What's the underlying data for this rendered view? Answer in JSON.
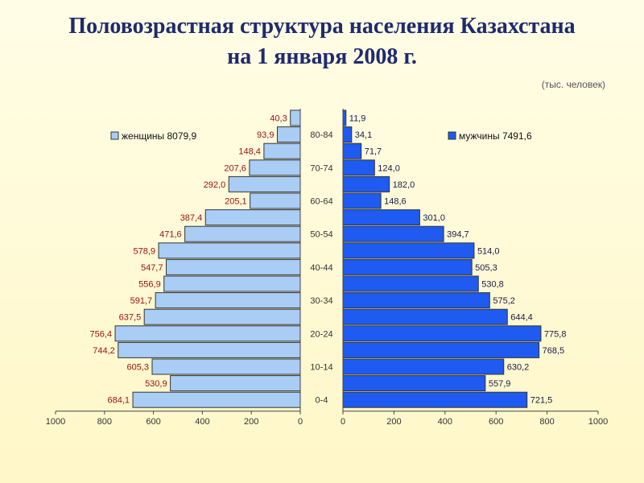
{
  "title": {
    "line1": "Половозрастная структура населения Казахстана",
    "line2": "на 1 января 2008 г."
  },
  "units": "(тыс. человек)",
  "colors": {
    "female": "#a9cdf5",
    "male": "#1f5bf0",
    "female_labels": "#a01010",
    "title": "#1f2a6e"
  },
  "chart_data": {
    "type": "bar",
    "orientation": "horizontal population pyramid",
    "age_labels_shown": [
      "80-84",
      "70-74",
      "60-64",
      "50-54",
      "40-44",
      "30-34",
      "20-24",
      "10-14",
      "0-4"
    ],
    "series": [
      {
        "name": "женщины 8079,9",
        "side": "left",
        "values": [
          40.3,
          93.9,
          148.4,
          207.6,
          292.0,
          205.1,
          387.4,
          471.6,
          578.9,
          547.7,
          556.9,
          591.7,
          637.5,
          756.4,
          744.2,
          605.3,
          530.9,
          684.1
        ],
        "labels": [
          "40,3",
          "93,9",
          "148,4",
          "207,6",
          "292,0",
          "205,1",
          "387,4",
          "471,6",
          "578,9",
          "547,7",
          "556,9",
          "591,7",
          "637,5",
          "756,4",
          "744,2",
          "605,3",
          "530,9",
          "684,1"
        ]
      },
      {
        "name": "мужчины 7491,6",
        "side": "right",
        "values": [
          11.9,
          34.1,
          71.7,
          124.0,
          182.0,
          148.6,
          301.0,
          394.7,
          514.0,
          505.3,
          530.8,
          575.2,
          644.4,
          775.8,
          768.5,
          630.2,
          557.9,
          721.5
        ],
        "labels": [
          "11,9",
          "34,1",
          "71,7",
          "124,0",
          "182,0",
          "148,6",
          "301,0",
          "394,7",
          "514,0",
          "505,3",
          "530,8",
          "575,2",
          "644,4",
          "775,8",
          "768,5",
          "630,2",
          "557,9",
          "721,5"
        ]
      }
    ],
    "xlim": [
      0,
      1000
    ],
    "left_ticks": [
      "1000",
      "800",
      "600",
      "400",
      "200",
      "0"
    ],
    "right_ticks": [
      "0",
      "200",
      "400",
      "600",
      "800",
      "1000"
    ],
    "legend": [
      "top-left",
      "top-right"
    ]
  }
}
